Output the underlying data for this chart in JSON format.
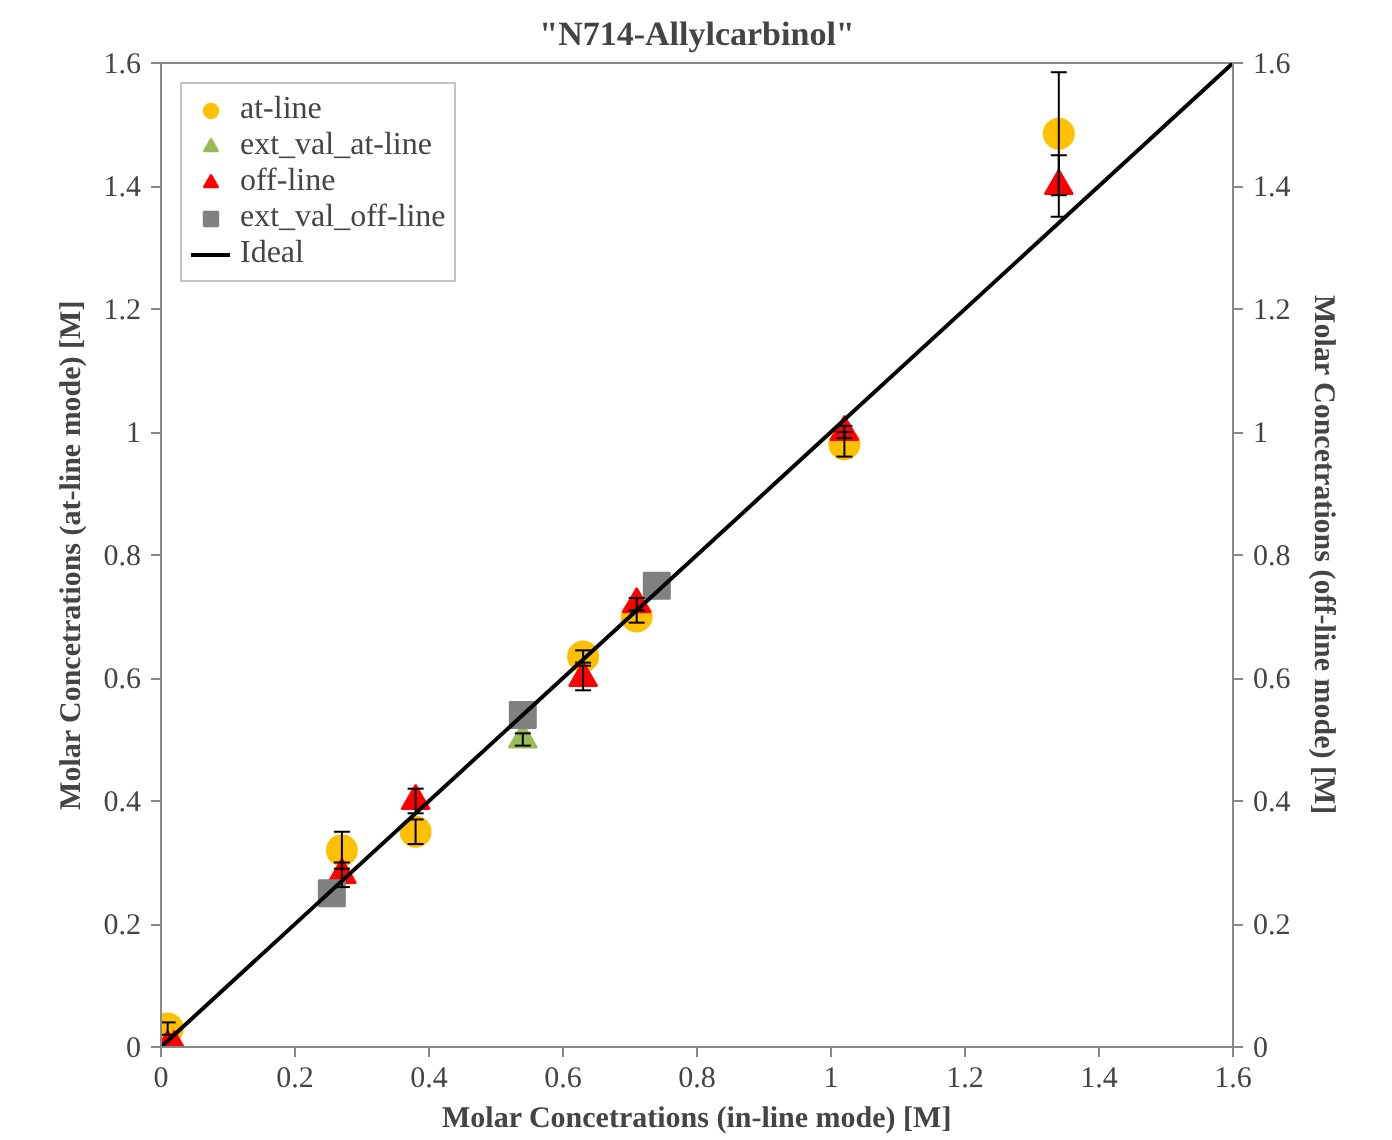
{
  "chart_data": {
    "type": "scatter",
    "title": "\"N714-Allylcarbinol\"",
    "xlabel": "Molar Concetrations (in-line mode) [M]",
    "ylabel": "Molar Concetrations (at-line mode) [M]",
    "y2label": "Molar Concetrations (off-line mode) [M]",
    "xlim": [
      0,
      1.6
    ],
    "ylim": [
      0,
      1.6
    ],
    "y2lim": [
      0,
      1.6
    ],
    "xticks": [
      0,
      0.2,
      0.4,
      0.6,
      0.8,
      1,
      1.2,
      1.4,
      1.6
    ],
    "yticks": [
      0,
      0.2,
      0.4,
      0.6,
      0.8,
      1,
      1.2,
      1.4,
      1.6
    ],
    "y2ticks": [
      0,
      0.2,
      0.4,
      0.6,
      0.8,
      1,
      1.2,
      1.4,
      1.6
    ],
    "grid": false,
    "legend": "top left",
    "series": [
      {
        "name": "at-line",
        "color": "#ffc000",
        "marker": "circle",
        "x": [
          0.01,
          0.27,
          0.38,
          0.63,
          0.71,
          1.02,
          1.34
        ],
        "values": [
          0.03,
          0.32,
          0.35,
          0.635,
          0.7,
          0.98,
          1.485
        ],
        "errors": [
          0.01,
          0.03,
          0.02,
          0.01,
          0.01,
          0.02,
          0.1
        ]
      },
      {
        "name": "ext_val_at-line",
        "color": "#9bbb59",
        "marker": "triangle",
        "x": [
          0.54
        ],
        "values": [
          0.5
        ],
        "errors": [
          0.01
        ]
      },
      {
        "name": "off-line",
        "color": "#ff0000",
        "marker": "triangle",
        "x": [
          0.01,
          0.02,
          0.27,
          0.38,
          0.63,
          0.71,
          1.02,
          1.34
        ],
        "values": [
          0.0,
          0.0,
          0.28,
          0.4,
          0.6,
          0.72,
          1.0,
          1.4
        ],
        "errors": [
          null,
          null,
          0.02,
          0.02,
          0.02,
          0.01,
          0.01,
          0.05
        ]
      },
      {
        "name": "ext_val_off-line",
        "color": "#808080",
        "marker": "square",
        "x": [
          0.255,
          0.54,
          0.74
        ],
        "values": [
          0.25,
          0.54,
          0.75
        ]
      },
      {
        "name": "Ideal",
        "type": "line",
        "color": "#000000",
        "line_style": "solid",
        "x": [
          0,
          1.6
        ],
        "values": [
          0,
          1.6
        ]
      }
    ]
  }
}
